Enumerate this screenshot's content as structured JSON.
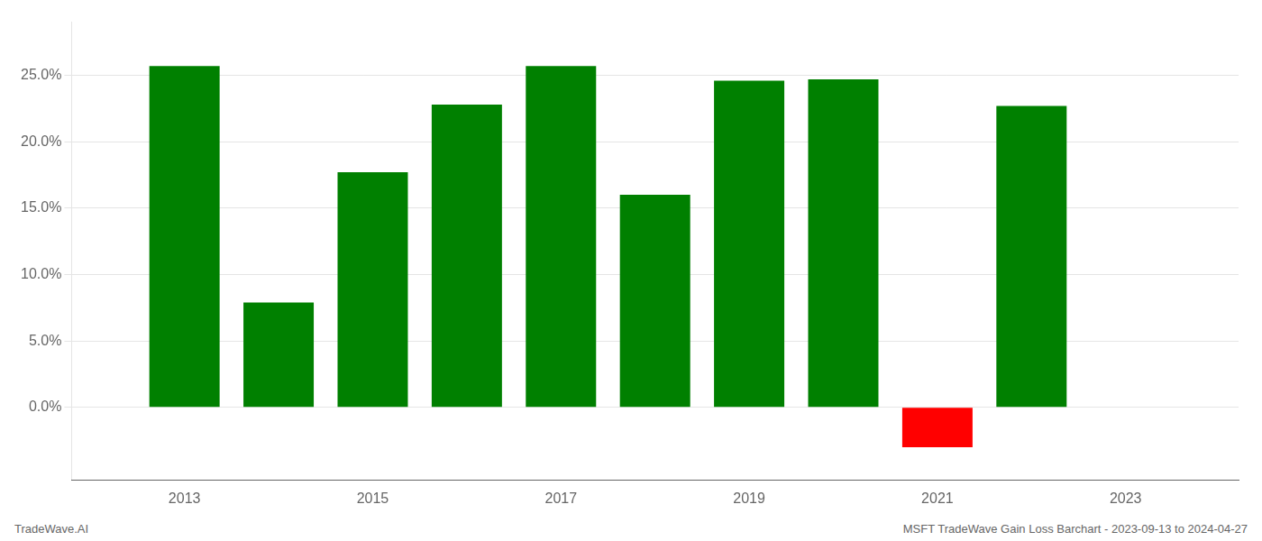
{
  "chart_data": {
    "type": "bar",
    "x": [
      2013,
      2014,
      2015,
      2016,
      2017,
      2018,
      2019,
      2020,
      2021,
      2022
    ],
    "values": [
      0.257,
      0.079,
      0.177,
      0.228,
      0.257,
      0.16,
      0.246,
      0.247,
      -0.03,
      0.227
    ],
    "colors": [
      "#008000",
      "#008000",
      "#008000",
      "#008000",
      "#008000",
      "#008000",
      "#008000",
      "#008000",
      "#ff0000",
      "#008000"
    ],
    "xlim": [
      2011.8,
      2024.2
    ],
    "xticks": [
      2013,
      2015,
      2017,
      2019,
      2021,
      2023
    ],
    "ylim": [
      -0.055,
      0.29
    ],
    "yticks": [
      {
        "value": 0.0,
        "label": "0.0%"
      },
      {
        "value": 0.05,
        "label": "5.0%"
      },
      {
        "value": 0.1,
        "label": "10.0%"
      },
      {
        "value": 0.15,
        "label": "15.0%"
      },
      {
        "value": 0.2,
        "label": "20.0%"
      },
      {
        "value": 0.25,
        "label": "25.0%"
      }
    ],
    "grid": true,
    "annotations": [
      "TradeWave.AI",
      "MSFT TradeWave Gain Loss Barchart - 2023-09-13 to 2024-04-27"
    ]
  }
}
